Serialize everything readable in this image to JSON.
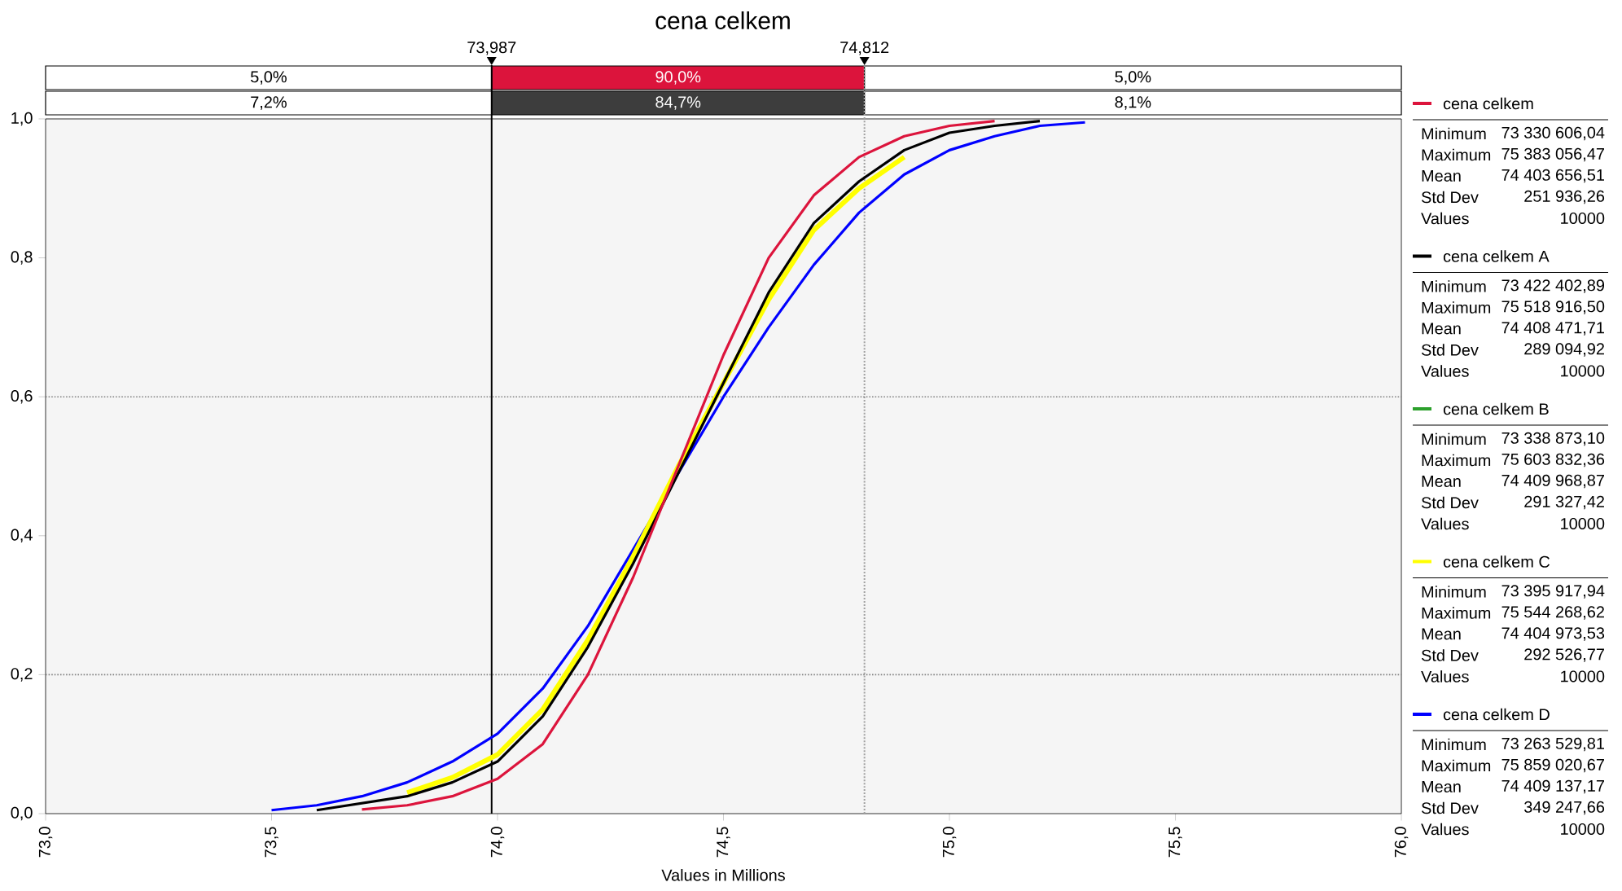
{
  "chart_data": {
    "type": "line",
    "title": "cena celkem",
    "xlabel": "Values in Millions",
    "xlim": [
      73,
      76
    ],
    "ylim": [
      0,
      1
    ],
    "xticks": [
      {
        "value": 73,
        "label": "73,0"
      },
      {
        "value": 73.5,
        "label": "73,5"
      },
      {
        "value": 74,
        "label": "74,0"
      },
      {
        "value": 74.5,
        "label": "74,5"
      },
      {
        "value": 75,
        "label": "75,0"
      },
      {
        "value": 75.5,
        "label": "75,5"
      },
      {
        "value": 76,
        "label": "76,0"
      }
    ],
    "yticks": [
      {
        "value": 0,
        "label": "0,0"
      },
      {
        "value": 0.2,
        "label": "0,2"
      },
      {
        "value": 0.4,
        "label": "0,4"
      },
      {
        "value": 0.6,
        "label": "0,6"
      },
      {
        "value": 0.8,
        "label": "0,8"
      },
      {
        "value": 1,
        "label": "1,0"
      }
    ],
    "legend": "right",
    "series": [
      {
        "name": "cena celkem",
        "color": "#dc143c",
        "x": [
          73.7,
          73.8,
          73.9,
          74.0,
          74.1,
          74.2,
          74.3,
          74.4,
          74.5,
          74.6,
          74.7,
          74.8,
          74.9,
          75.0,
          75.1
        ],
        "values": [
          0.006,
          0.012,
          0.025,
          0.05,
          0.1,
          0.2,
          0.34,
          0.5,
          0.66,
          0.8,
          0.89,
          0.945,
          0.975,
          0.99,
          0.997
        ]
      },
      {
        "name": "cena celkem A",
        "color": "#000000",
        "x": [
          73.6,
          73.8,
          73.9,
          74.0,
          74.1,
          74.2,
          74.3,
          74.4,
          74.5,
          74.6,
          74.7,
          74.8,
          74.9,
          75.0,
          75.1,
          75.2
        ],
        "values": [
          0.005,
          0.025,
          0.045,
          0.075,
          0.14,
          0.24,
          0.36,
          0.49,
          0.62,
          0.75,
          0.85,
          0.91,
          0.955,
          0.98,
          0.99,
          0.997
        ]
      },
      {
        "name": "cena celkem B",
        "color": "#2ca02c"
      },
      {
        "name": "cena celkem C",
        "color": "#ffff00",
        "x": [
          73.8,
          73.9,
          74.0,
          74.1,
          74.2,
          74.3,
          74.4,
          74.5,
          74.6,
          74.7,
          74.8,
          74.9
        ],
        "values": [
          0.03,
          0.052,
          0.085,
          0.15,
          0.25,
          0.37,
          0.5,
          0.62,
          0.74,
          0.84,
          0.9,
          0.945
        ]
      },
      {
        "name": "cena celkem D",
        "color": "#0000ff",
        "x": [
          73.5,
          73.6,
          73.7,
          73.8,
          73.9,
          74.0,
          74.1,
          74.2,
          74.3,
          74.4,
          74.5,
          74.6,
          74.7,
          74.8,
          74.9,
          75.0,
          75.1,
          75.2,
          75.3
        ],
        "values": [
          0.005,
          0.012,
          0.025,
          0.045,
          0.075,
          0.115,
          0.18,
          0.27,
          0.38,
          0.49,
          0.6,
          0.7,
          0.79,
          0.865,
          0.92,
          0.955,
          0.975,
          0.99,
          0.995
        ]
      }
    ],
    "ref_lines": [
      {
        "axis": "x",
        "value": 73.987,
        "label": "73,987",
        "color": "#000000",
        "line_style": "solid"
      },
      {
        "axis": "x",
        "value": 74.812,
        "label": "74,812",
        "color": "#a0a0a0",
        "line_style": "dotted"
      },
      {
        "axis": "y",
        "value": 0.2,
        "color": "#808080",
        "line_style": "dotted"
      },
      {
        "axis": "y",
        "value": 0.6,
        "color": "#808080",
        "line_style": "dotted"
      }
    ],
    "annotations": [
      "5,0%",
      "90,0%",
      "5,0%",
      "7,2%",
      "84,7%",
      "8,1%",
      "Minimum",
      "73 330 606,04",
      "Maximum",
      "75 383 056,47",
      "Mean",
      "74 403 656,51",
      "Std Dev",
      "251 936,26",
      "Values",
      "10000",
      "Minimum",
      "73 422 402,89",
      "Maximum",
      "75 518 916,50",
      "Mean",
      "74 408 471,71",
      "Std Dev",
      "289 094,92",
      "Values",
      "10000",
      "Minimum",
      "73 338 873,10",
      "Maximum",
      "75 603 832,36",
      "Mean",
      "74 409 968,87",
      "Std Dev",
      "291 327,42",
      "Values",
      "10000",
      "Minimum",
      "73 395 917,94",
      "Maximum",
      "75 544 268,62",
      "Mean",
      "74 404 973,53",
      "Std Dev",
      "292 526,77",
      "Values",
      "10000",
      "Minimum",
      "73 263 529,81",
      "Maximum",
      "75 859 020,67",
      "Mean",
      "74 409 137,17",
      "Std Dev",
      "349 247,66",
      "Values",
      "10000"
    ]
  }
}
